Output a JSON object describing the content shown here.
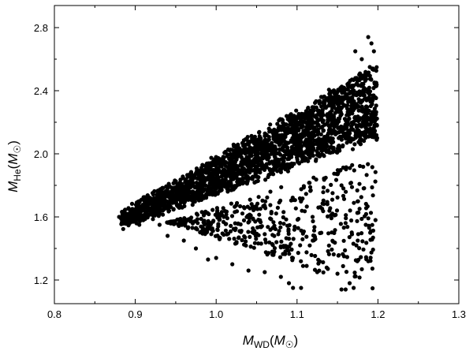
{
  "chart_data": {
    "type": "scatter",
    "title": "",
    "xlabel": {
      "main": "M",
      "sub": "WD",
      "open": "(",
      "unit_main": "M",
      "unit_sym": "☉",
      "close": ")"
    },
    "ylabel": {
      "main": "M",
      "sub": "He",
      "open": "(",
      "unit_main": "M",
      "unit_sym": "☉",
      "close": ")"
    },
    "xlim": [
      0.8,
      1.3
    ],
    "ylim": [
      1.05,
      2.94
    ],
    "xticks": [
      "0.8",
      "0.9",
      "1.0",
      "1.1",
      "1.2",
      "1.3"
    ],
    "yticks": [
      "1.2",
      "1.6",
      "2.0",
      "2.4",
      "2.8"
    ],
    "grid": false,
    "legend": "none",
    "marker_color": "#000000",
    "upper_band_samples": 2300,
    "lower_cloud_samples": 520,
    "points": [
      [
        0.88,
        1.6
      ],
      [
        0.885,
        1.61
      ],
      [
        0.892,
        1.59
      ],
      [
        0.897,
        1.62
      ],
      [
        0.905,
        1.55
      ],
      [
        0.91,
        1.61
      ],
      [
        0.915,
        1.66
      ],
      [
        0.92,
        1.7
      ],
      [
        0.93,
        1.55
      ],
      [
        0.935,
        1.75
      ],
      [
        0.94,
        1.48
      ],
      [
        0.95,
        1.77
      ],
      [
        0.96,
        1.45
      ],
      [
        0.965,
        1.8
      ],
      [
        0.975,
        1.4
      ],
      [
        0.985,
        1.85
      ],
      [
        0.99,
        1.33
      ],
      [
        1.0,
        1.34
      ],
      [
        1.01,
        1.9
      ],
      [
        1.02,
        1.3
      ],
      [
        1.03,
        1.93
      ],
      [
        1.04,
        1.26
      ],
      [
        1.05,
        1.97
      ],
      [
        1.06,
        1.25
      ],
      [
        1.07,
        2.05
      ],
      [
        1.08,
        1.22
      ],
      [
        1.09,
        1.18
      ],
      [
        1.095,
        1.15
      ],
      [
        1.1,
        2.15
      ],
      [
        1.105,
        1.15
      ],
      [
        1.11,
        2.2
      ],
      [
        1.12,
        2.28
      ],
      [
        1.125,
        1.25
      ],
      [
        1.13,
        2.3
      ],
      [
        1.14,
        2.38
      ],
      [
        1.15,
        1.24
      ],
      [
        1.155,
        1.14
      ],
      [
        1.16,
        1.14
      ],
      [
        1.165,
        1.18
      ],
      [
        1.17,
        1.15
      ],
      [
        1.172,
        2.65
      ],
      [
        1.175,
        1.45
      ],
      [
        1.18,
        2.6
      ],
      [
        1.185,
        1.55
      ],
      [
        1.188,
        2.74
      ],
      [
        1.19,
        2.55
      ],
      [
        1.192,
        2.7
      ],
      [
        1.195,
        2.65
      ],
      [
        1.197,
        1.58
      ],
      [
        1.198,
        2.45
      ],
      [
        1.199,
        2.1
      ]
    ]
  }
}
